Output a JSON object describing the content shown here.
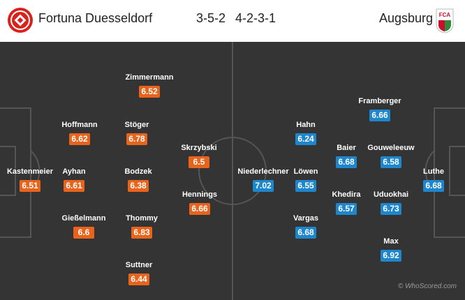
{
  "header": {
    "home_team": "Fortuna Duesseldorf",
    "home_formation": "3-5-2",
    "away_formation": "4-2-3-1",
    "away_team": "Augsburg",
    "away_logo_text": "FCA"
  },
  "colors": {
    "home_rating": "#e8641c",
    "away_rating": "#1d86cc",
    "pitch": "#343434",
    "lines": "#555555"
  },
  "home_players": [
    {
      "name": "Kastenmeier",
      "rating": "6.51"
    },
    {
      "name": "Hoffmann",
      "rating": "6.62"
    },
    {
      "name": "Ayhan",
      "rating": "6.61"
    },
    {
      "name": "Gießelmann",
      "rating": "6.6"
    },
    {
      "name": "Zimmermann",
      "rating": "6.52"
    },
    {
      "name": "Stöger",
      "rating": "6.78"
    },
    {
      "name": "Bodzek",
      "rating": "6.38"
    },
    {
      "name": "Thommy",
      "rating": "6.83"
    },
    {
      "name": "Suttner",
      "rating": "6.44"
    },
    {
      "name": "Skrzybski",
      "rating": "6.5"
    },
    {
      "name": "Hennings",
      "rating": "6.66"
    }
  ],
  "away_players": [
    {
      "name": "Niederlechner",
      "rating": "7.02"
    },
    {
      "name": "Hahn",
      "rating": "6.24"
    },
    {
      "name": "Löwen",
      "rating": "6.55"
    },
    {
      "name": "Vargas",
      "rating": "6.68"
    },
    {
      "name": "Baier",
      "rating": "6.68"
    },
    {
      "name": "Khedira",
      "rating": "6.57"
    },
    {
      "name": "Framberger",
      "rating": "6.66"
    },
    {
      "name": "Gouweleeuw",
      "rating": "6.58"
    },
    {
      "name": "Uduokhai",
      "rating": "6.73"
    },
    {
      "name": "Max",
      "rating": "6.92"
    },
    {
      "name": "Luthe",
      "rating": "6.68"
    }
  ],
  "watermark": "© WhoScored.com"
}
